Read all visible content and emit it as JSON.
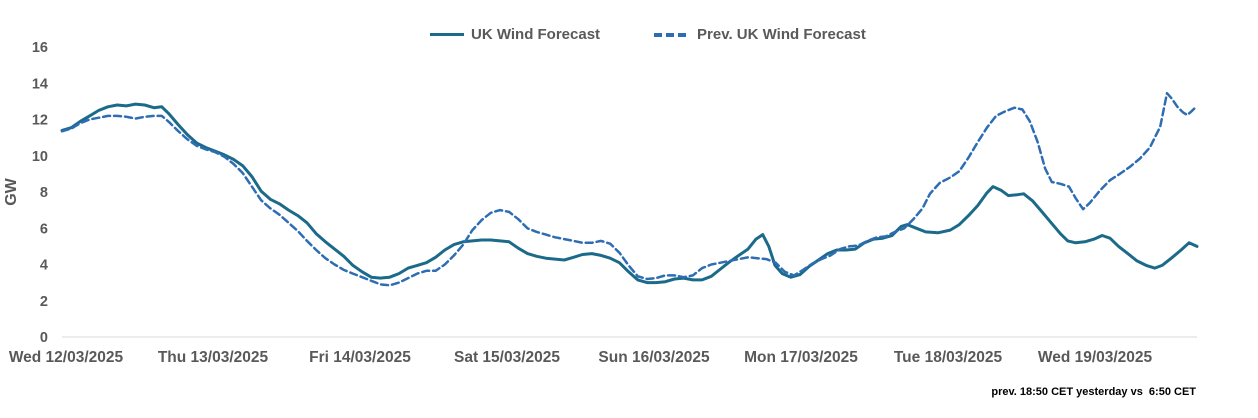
{
  "legend": {
    "series1": "UK Wind Forecast",
    "series2": "Prev. UK Wind Forecast"
  },
  "footnote": "prev. 18:50 CET yesterday vs  6:50 CET",
  "colors": {
    "forecast": "#1b6a8a",
    "prev_forecast": "#2e6db4",
    "label_text": "#595959",
    "axis_line": "#d9d9d9",
    "footnote_text": "#000000"
  },
  "chart_data": {
    "type": "line",
    "title": "",
    "xlabel": "",
    "ylabel": "GW",
    "ylim": [
      0,
      16
    ],
    "yticks": [
      0,
      2,
      4,
      6,
      8,
      10,
      12,
      14,
      16
    ],
    "grid": false,
    "legend_position": "top-center",
    "x_unit": "hours since Wed 12/03/2025 00:00",
    "total_hours": 185.3,
    "hours_per_day": 24,
    "categories": [
      "Wed 12/03/2025",
      "Thu 13/03/2025",
      "Fri 14/03/2025",
      "Sat 15/03/2025",
      "Sun 16/03/2025",
      "Mon 17/03/2025",
      "Tue 18/03/2025",
      "Wed 19/03/2025"
    ],
    "series": [
      {
        "name": "UK Wind Forecast",
        "style": "solid",
        "color": "#1b6a8a",
        "points": [
          [
            0,
            11.4
          ],
          [
            1.5,
            11.55
          ],
          [
            3,
            11.9
          ],
          [
            4.5,
            12.2
          ],
          [
            6,
            12.5
          ],
          [
            7.5,
            12.7
          ],
          [
            9,
            12.8
          ],
          [
            10.5,
            12.75
          ],
          [
            12,
            12.85
          ],
          [
            13.5,
            12.8
          ],
          [
            15,
            12.65
          ],
          [
            16.3,
            12.7
          ],
          [
            17.5,
            12.3
          ],
          [
            19,
            11.7
          ],
          [
            20.5,
            11.15
          ],
          [
            22,
            10.7
          ],
          [
            23.5,
            10.45
          ],
          [
            25,
            10.25
          ],
          [
            26.5,
            10.05
          ],
          [
            28,
            9.8
          ],
          [
            29.5,
            9.45
          ],
          [
            31,
            8.85
          ],
          [
            32.5,
            8.05
          ],
          [
            34,
            7.6
          ],
          [
            35.5,
            7.35
          ],
          [
            37,
            7.0
          ],
          [
            38.5,
            6.7
          ],
          [
            40,
            6.3
          ],
          [
            41.5,
            5.7
          ],
          [
            43,
            5.25
          ],
          [
            44.5,
            4.85
          ],
          [
            46,
            4.45
          ],
          [
            47.5,
            3.95
          ],
          [
            49,
            3.6
          ],
          [
            50.5,
            3.3
          ],
          [
            52,
            3.25
          ],
          [
            53.5,
            3.3
          ],
          [
            55,
            3.5
          ],
          [
            56.5,
            3.8
          ],
          [
            58,
            3.95
          ],
          [
            59.5,
            4.1
          ],
          [
            61,
            4.4
          ],
          [
            62.5,
            4.8
          ],
          [
            64,
            5.1
          ],
          [
            65.5,
            5.25
          ],
          [
            67,
            5.3
          ],
          [
            68.5,
            5.35
          ],
          [
            70,
            5.35
          ],
          [
            71.5,
            5.3
          ],
          [
            73,
            5.25
          ],
          [
            74.5,
            4.9
          ],
          [
            76,
            4.6
          ],
          [
            77.5,
            4.45
          ],
          [
            79,
            4.35
          ],
          [
            80.5,
            4.3
          ],
          [
            82,
            4.25
          ],
          [
            83.5,
            4.4
          ],
          [
            85,
            4.55
          ],
          [
            86.5,
            4.6
          ],
          [
            88,
            4.5
          ],
          [
            89.5,
            4.35
          ],
          [
            91,
            4.1
          ],
          [
            92.5,
            3.6
          ],
          [
            94,
            3.15
          ],
          [
            95.5,
            3.0
          ],
          [
            97,
            3.0
          ],
          [
            98.5,
            3.05
          ],
          [
            100,
            3.2
          ],
          [
            101.5,
            3.25
          ],
          [
            103,
            3.15
          ],
          [
            104.5,
            3.15
          ],
          [
            106,
            3.35
          ],
          [
            107.5,
            3.75
          ],
          [
            109,
            4.15
          ],
          [
            110.5,
            4.5
          ],
          [
            112,
            4.85
          ],
          [
            113.3,
            5.4
          ],
          [
            114.4,
            5.65
          ],
          [
            115.4,
            5.0
          ],
          [
            116.4,
            3.95
          ],
          [
            117.6,
            3.5
          ],
          [
            119,
            3.3
          ],
          [
            120.5,
            3.45
          ],
          [
            122,
            3.9
          ],
          [
            123.5,
            4.25
          ],
          [
            125,
            4.6
          ],
          [
            126.5,
            4.8
          ],
          [
            128,
            4.8
          ],
          [
            129.5,
            4.85
          ],
          [
            131,
            5.2
          ],
          [
            132.5,
            5.4
          ],
          [
            134,
            5.45
          ],
          [
            135.5,
            5.6
          ],
          [
            137,
            6.1
          ],
          [
            138,
            6.2
          ],
          [
            139.5,
            6.0
          ],
          [
            141,
            5.8
          ],
          [
            143,
            5.75
          ],
          [
            145,
            5.9
          ],
          [
            146.5,
            6.2
          ],
          [
            148,
            6.7
          ],
          [
            149.5,
            7.25
          ],
          [
            151,
            7.95
          ],
          [
            152,
            8.3
          ],
          [
            153.3,
            8.1
          ],
          [
            154.5,
            7.8
          ],
          [
            156,
            7.85
          ],
          [
            157,
            7.9
          ],
          [
            158.5,
            7.5
          ],
          [
            160,
            6.9
          ],
          [
            161.5,
            6.3
          ],
          [
            163,
            5.7
          ],
          [
            164.2,
            5.3
          ],
          [
            165.5,
            5.2
          ],
          [
            167,
            5.25
          ],
          [
            168.5,
            5.4
          ],
          [
            169.8,
            5.6
          ],
          [
            171.1,
            5.45
          ],
          [
            172.5,
            5.0
          ],
          [
            174,
            4.6
          ],
          [
            175.5,
            4.2
          ],
          [
            177,
            3.95
          ],
          [
            178.4,
            3.8
          ],
          [
            179.6,
            3.95
          ],
          [
            181.1,
            4.35
          ],
          [
            182.7,
            4.8
          ],
          [
            184,
            5.2
          ],
          [
            185.3,
            5.0
          ]
        ]
      },
      {
        "name": "Prev. UK Wind Forecast",
        "style": "dashed",
        "color": "#2e6db4",
        "points": [
          [
            0,
            11.35
          ],
          [
            1.5,
            11.5
          ],
          [
            3,
            11.8
          ],
          [
            4.5,
            12.0
          ],
          [
            6,
            12.1
          ],
          [
            7.5,
            12.2
          ],
          [
            9,
            12.2
          ],
          [
            10.5,
            12.15
          ],
          [
            12,
            12.05
          ],
          [
            13.5,
            12.15
          ],
          [
            15,
            12.2
          ],
          [
            16.3,
            12.2
          ],
          [
            17.5,
            11.85
          ],
          [
            19,
            11.35
          ],
          [
            20.5,
            10.9
          ],
          [
            22,
            10.55
          ],
          [
            23.5,
            10.35
          ],
          [
            25,
            10.2
          ],
          [
            26.5,
            9.95
          ],
          [
            28,
            9.55
          ],
          [
            29.5,
            9.05
          ],
          [
            31,
            8.3
          ],
          [
            32.5,
            7.55
          ],
          [
            34,
            7.1
          ],
          [
            35.5,
            6.75
          ],
          [
            37,
            6.3
          ],
          [
            38.5,
            5.85
          ],
          [
            40,
            5.3
          ],
          [
            41.5,
            4.8
          ],
          [
            43,
            4.35
          ],
          [
            44.5,
            4.0
          ],
          [
            46,
            3.7
          ],
          [
            47.5,
            3.5
          ],
          [
            49,
            3.3
          ],
          [
            50.5,
            3.1
          ],
          [
            52,
            2.9
          ],
          [
            53.5,
            2.85
          ],
          [
            55,
            3.0
          ],
          [
            56.5,
            3.25
          ],
          [
            58,
            3.5
          ],
          [
            59.5,
            3.65
          ],
          [
            61,
            3.65
          ],
          [
            62.5,
            4.0
          ],
          [
            64,
            4.5
          ],
          [
            65.5,
            5.1
          ],
          [
            67,
            5.9
          ],
          [
            68.5,
            6.45
          ],
          [
            70,
            6.85
          ],
          [
            71.5,
            7.0
          ],
          [
            73,
            6.9
          ],
          [
            74.5,
            6.5
          ],
          [
            76,
            6.0
          ],
          [
            77.5,
            5.8
          ],
          [
            79,
            5.65
          ],
          [
            80.5,
            5.5
          ],
          [
            82,
            5.4
          ],
          [
            83.5,
            5.3
          ],
          [
            85,
            5.2
          ],
          [
            86.5,
            5.2
          ],
          [
            88,
            5.3
          ],
          [
            89.5,
            5.15
          ],
          [
            91,
            4.65
          ],
          [
            92.5,
            3.95
          ],
          [
            94,
            3.35
          ],
          [
            95.5,
            3.2
          ],
          [
            97,
            3.25
          ],
          [
            98.5,
            3.4
          ],
          [
            100,
            3.4
          ],
          [
            101.5,
            3.3
          ],
          [
            103,
            3.4
          ],
          [
            104.5,
            3.8
          ],
          [
            106,
            4.0
          ],
          [
            107.5,
            4.1
          ],
          [
            109,
            4.2
          ],
          [
            110.5,
            4.3
          ],
          [
            112,
            4.4
          ],
          [
            113.5,
            4.35
          ],
          [
            115,
            4.3
          ],
          [
            116.5,
            4.1
          ],
          [
            118,
            3.6
          ],
          [
            119.5,
            3.4
          ],
          [
            121,
            3.7
          ],
          [
            122.5,
            4.05
          ],
          [
            124,
            4.3
          ],
          [
            125.5,
            4.5
          ],
          [
            127,
            4.85
          ],
          [
            128.5,
            5.0
          ],
          [
            130,
            5.05
          ],
          [
            131.5,
            5.3
          ],
          [
            133,
            5.5
          ],
          [
            134.5,
            5.55
          ],
          [
            136,
            5.8
          ],
          [
            137.5,
            6.0
          ],
          [
            139,
            6.5
          ],
          [
            140.5,
            7.1
          ],
          [
            141.7,
            7.9
          ],
          [
            143.3,
            8.5
          ],
          [
            145,
            8.8
          ],
          [
            146.5,
            9.15
          ],
          [
            148,
            9.9
          ],
          [
            149.5,
            10.75
          ],
          [
            151,
            11.55
          ],
          [
            152.5,
            12.2
          ],
          [
            154,
            12.45
          ],
          [
            155.5,
            12.65
          ],
          [
            156.8,
            12.55
          ],
          [
            158,
            11.9
          ],
          [
            159.3,
            10.75
          ],
          [
            160.5,
            9.3
          ],
          [
            161.6,
            8.55
          ],
          [
            163,
            8.45
          ],
          [
            164.4,
            8.3
          ],
          [
            165.5,
            7.65
          ],
          [
            166.7,
            7.05
          ],
          [
            167.8,
            7.4
          ],
          [
            169.5,
            8.1
          ],
          [
            171.1,
            8.65
          ],
          [
            172.7,
            9.0
          ],
          [
            174.4,
            9.4
          ],
          [
            176,
            9.85
          ],
          [
            177.6,
            10.45
          ],
          [
            179.3,
            11.6
          ],
          [
            180.4,
            13.45
          ],
          [
            181.2,
            13.15
          ],
          [
            182.1,
            12.7
          ],
          [
            183,
            12.4
          ],
          [
            183.7,
            12.25
          ],
          [
            184.4,
            12.45
          ],
          [
            185.3,
            12.75
          ]
        ]
      }
    ]
  }
}
